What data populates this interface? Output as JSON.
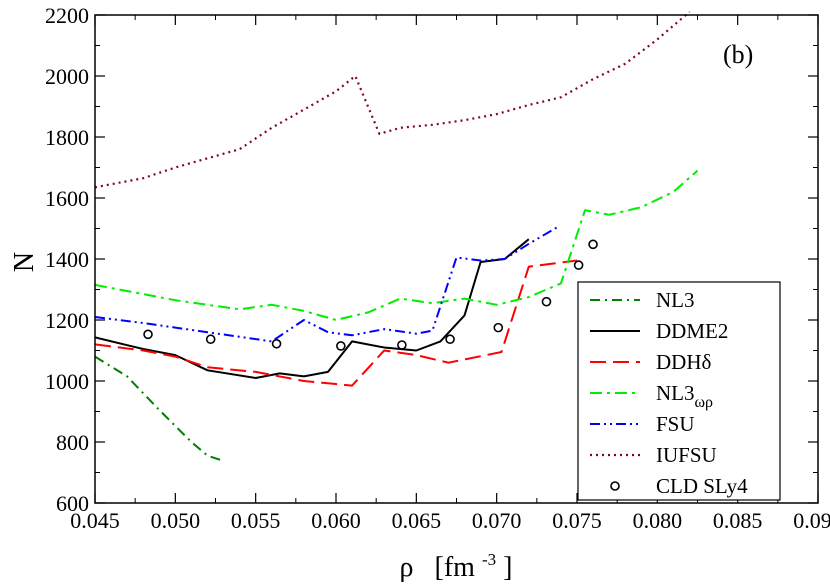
{
  "chart_data": {
    "type": "line",
    "panel_label": "(b)",
    "xlabel": {
      "main": "ρ",
      "unit_open": "[fm",
      "unit_exp": "-3",
      "unit_close": "]"
    },
    "ylabel": "N",
    "xlim": [
      0.045,
      0.09
    ],
    "ylim": [
      600,
      2200
    ],
    "xticks": [
      "0.045",
      "0.050",
      "0.055",
      "0.060",
      "0.065",
      "0.070",
      "0.075",
      "0.080",
      "0.085",
      "0.090"
    ],
    "yticks": [
      "600",
      "800",
      "1000",
      "1200",
      "1400",
      "1600",
      "1800",
      "2000",
      "2200"
    ],
    "grid": false,
    "legend_position": "bottom-right",
    "series": [
      {
        "name": "NL3",
        "name_sub": "",
        "color": "#008000",
        "dash": "10,5,2,5",
        "width": 2,
        "x": [
          0.045,
          0.047,
          0.049,
          0.051,
          0.052,
          0.053
        ],
        "y": [
          1080,
          1015,
          905,
          800,
          755,
          738
        ]
      },
      {
        "name": "DDME2",
        "name_sub": "",
        "color": "#000000",
        "dash": "",
        "width": 2,
        "x": [
          0.045,
          0.048,
          0.05,
          0.052,
          0.055,
          0.0565,
          0.058,
          0.0595,
          0.061,
          0.063,
          0.065,
          0.0665,
          0.068,
          0.069,
          0.0705,
          0.072
        ],
        "y": [
          1143,
          1105,
          1085,
          1035,
          1010,
          1025,
          1015,
          1030,
          1130,
          1110,
          1100,
          1130,
          1215,
          1390,
          1400,
          1465
        ]
      },
      {
        "name": "DDHδ",
        "name_sub": "",
        "color": "#ff0000",
        "dash": "16,7",
        "width": 2,
        "x": [
          0.045,
          0.048,
          0.05,
          0.052,
          0.055,
          0.058,
          0.061,
          0.063,
          0.065,
          0.067,
          0.0703,
          0.072,
          0.075
        ],
        "y": [
          1120,
          1100,
          1080,
          1045,
          1030,
          1000,
          985,
          1100,
          1085,
          1060,
          1095,
          1375,
          1395
        ]
      },
      {
        "name": "NL3",
        "name_sub": "ωρ",
        "color": "#00ee00",
        "dash": "12,5,3,5",
        "width": 2,
        "x": [
          0.045,
          0.048,
          0.05,
          0.052,
          0.054,
          0.056,
          0.058,
          0.06,
          0.062,
          0.064,
          0.066,
          0.068,
          0.07,
          0.072,
          0.074,
          0.0755,
          0.077,
          0.079,
          0.081,
          0.0825
        ],
        "y": [
          1315,
          1285,
          1265,
          1250,
          1235,
          1250,
          1230,
          1200,
          1225,
          1270,
          1255,
          1270,
          1250,
          1275,
          1320,
          1560,
          1545,
          1570,
          1620,
          1690
        ]
      },
      {
        "name": "FSU",
        "name_sub": "",
        "color": "#0000ff",
        "dash": "10,4,2,4,2,4",
        "width": 2,
        "x": [
          0.045,
          0.048,
          0.05,
          0.052,
          0.054,
          0.056,
          0.058,
          0.0595,
          0.061,
          0.063,
          0.065,
          0.066,
          0.0675,
          0.069,
          0.0705,
          0.072,
          0.0738
        ],
        "y": [
          1210,
          1190,
          1175,
          1160,
          1145,
          1130,
          1200,
          1160,
          1150,
          1170,
          1155,
          1165,
          1405,
          1395,
          1400,
          1450,
          1505
        ]
      },
      {
        "name": "IUFSU",
        "name_sub": "",
        "color": "#800040",
        "dash": "2,4",
        "width": 2.2,
        "x": [
          0.045,
          0.048,
          0.05,
          0.052,
          0.054,
          0.056,
          0.058,
          0.06,
          0.0612,
          0.0627,
          0.064,
          0.066,
          0.068,
          0.07,
          0.072,
          0.074,
          0.076,
          0.078,
          0.08,
          0.082
        ],
        "y": [
          1635,
          1665,
          1700,
          1730,
          1760,
          1830,
          1890,
          1950,
          2000,
          1810,
          1830,
          1840,
          1855,
          1875,
          1905,
          1930,
          1990,
          2040,
          2120,
          2210
        ]
      }
    ],
    "markers": {
      "name": "CLD SLy4",
      "color": "#000000",
      "x": [
        0.0483,
        0.0522,
        0.0563,
        0.0603,
        0.0641,
        0.0671,
        0.0701,
        0.0731,
        0.0751,
        0.076
      ],
      "y": [
        1153,
        1137,
        1122,
        1115,
        1118,
        1137,
        1175,
        1260,
        1380,
        1448
      ]
    }
  }
}
